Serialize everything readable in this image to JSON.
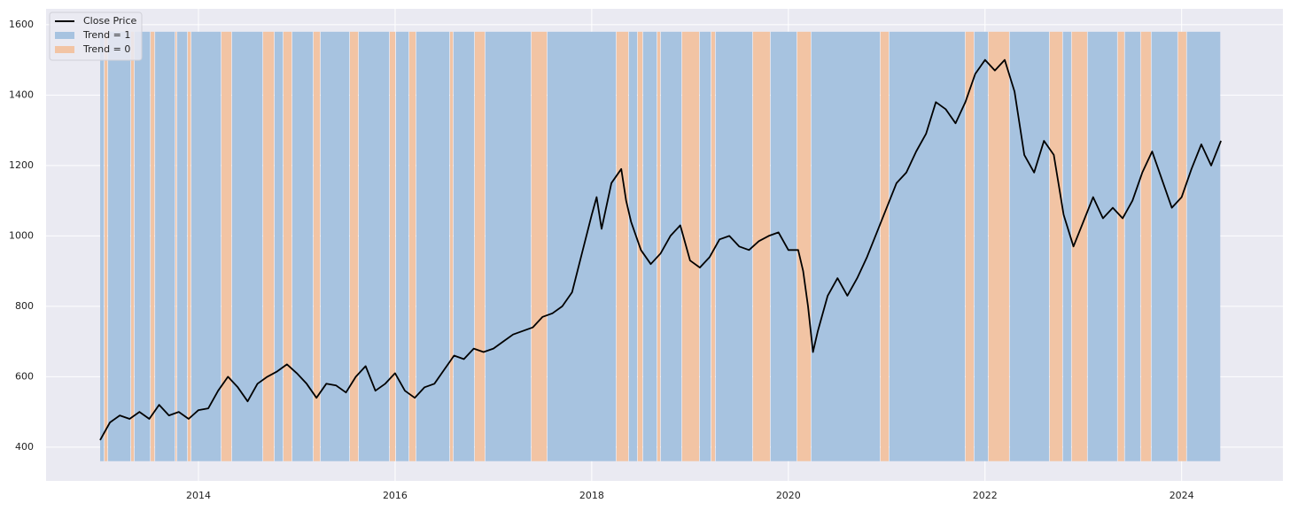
{
  "chart_data": {
    "type": "line",
    "series": [
      {
        "name": "Close Price",
        "color": "#000000",
        "x": [
          2013.0,
          2013.1,
          2013.2,
          2013.3,
          2013.4,
          2013.5,
          2013.6,
          2013.7,
          2013.8,
          2013.9,
          2014.0,
          2014.1,
          2014.2,
          2014.3,
          2014.4,
          2014.5,
          2014.6,
          2014.7,
          2014.8,
          2014.9,
          2015.0,
          2015.1,
          2015.2,
          2015.3,
          2015.4,
          2015.5,
          2015.6,
          2015.7,
          2015.8,
          2015.9,
          2016.0,
          2016.1,
          2016.2,
          2016.3,
          2016.4,
          2016.5,
          2016.6,
          2016.7,
          2016.8,
          2016.9,
          2017.0,
          2017.1,
          2017.2,
          2017.3,
          2017.4,
          2017.5,
          2017.6,
          2017.7,
          2017.8,
          2017.9,
          2018.0,
          2018.05,
          2018.1,
          2018.2,
          2018.3,
          2018.35,
          2018.4,
          2018.5,
          2018.6,
          2018.7,
          2018.8,
          2018.9,
          2019.0,
          2019.1,
          2019.2,
          2019.3,
          2019.4,
          2019.5,
          2019.6,
          2019.7,
          2019.8,
          2019.9,
          2020.0,
          2020.1,
          2020.15,
          2020.2,
          2020.25,
          2020.3,
          2020.4,
          2020.5,
          2020.6,
          2020.7,
          2020.8,
          2020.9,
          2021.0,
          2021.1,
          2021.2,
          2021.3,
          2021.4,
          2021.5,
          2021.6,
          2021.7,
          2021.8,
          2021.9,
          2022.0,
          2022.1,
          2022.2,
          2022.3,
          2022.4,
          2022.5,
          2022.6,
          2022.7,
          2022.8,
          2022.9,
          2023.0,
          2023.1,
          2023.2,
          2023.3,
          2023.4,
          2023.5,
          2023.6,
          2023.7,
          2023.8,
          2023.9,
          2024.0,
          2024.1,
          2024.2,
          2024.3,
          2024.4
        ],
        "values": [
          420,
          470,
          490,
          480,
          500,
          480,
          520,
          490,
          500,
          480,
          505,
          510,
          560,
          600,
          570,
          530,
          580,
          600,
          615,
          635,
          610,
          580,
          540,
          580,
          575,
          555,
          600,
          630,
          560,
          580,
          610,
          560,
          540,
          570,
          580,
          620,
          660,
          650,
          680,
          670,
          680,
          700,
          720,
          730,
          740,
          770,
          780,
          800,
          840,
          950,
          1060,
          1110,
          1020,
          1150,
          1190,
          1100,
          1040,
          960,
          920,
          950,
          1000,
          1030,
          930,
          910,
          940,
          990,
          1000,
          970,
          960,
          985,
          1000,
          1010,
          960,
          960,
          900,
          800,
          670,
          730,
          830,
          880,
          830,
          880,
          940,
          1010,
          1080,
          1150,
          1180,
          1240,
          1290,
          1380,
          1360,
          1320,
          1380,
          1460,
          1500,
          1470,
          1500,
          1410,
          1230,
          1180,
          1270,
          1230,
          1060,
          970,
          1040,
          1110,
          1050,
          1080,
          1050,
          1100,
          1180,
          1240,
          1160,
          1080,
          1110,
          1190,
          1260,
          1200,
          1270
        ]
      }
    ],
    "spans": [
      {
        "name": "Trend = 1",
        "color": "#a7c3e0",
        "intervals": [
          [
            2013.0,
            2013.045
          ],
          [
            2013.081,
            2013.315
          ],
          [
            2013.351,
            2013.514
          ],
          [
            2013.559,
            2013.766
          ],
          [
            2013.784,
            2013.892
          ],
          [
            2013.928,
            2014.234
          ],
          [
            2014.342,
            2014.658
          ],
          [
            2014.775,
            2014.865
          ],
          [
            2014.955,
            2015.171
          ],
          [
            2015.243,
            2015.541
          ],
          [
            2015.631,
            2015.946
          ],
          [
            2016.009,
            2016.144
          ],
          [
            2016.216,
            2016.559
          ],
          [
            2016.595,
            2016.811
          ],
          [
            2016.919,
            2017.387
          ],
          [
            2017.55,
            2018.252
          ],
          [
            2018.378,
            2018.468
          ],
          [
            2018.523,
            2018.667
          ],
          [
            2018.703,
            2018.919
          ],
          [
            2019.099,
            2019.216
          ],
          [
            2019.261,
            2019.64
          ],
          [
            2019.82,
            2020.09
          ],
          [
            2020.234,
            2020.937
          ],
          [
            2021.027,
            2021.802
          ],
          [
            2021.892,
            2022.036
          ],
          [
            2022.252,
            2022.658
          ],
          [
            2022.793,
            2022.883
          ],
          [
            2023.045,
            2023.351
          ],
          [
            2023.423,
            2023.586
          ],
          [
            2023.694,
            2023.964
          ],
          [
            2024.054,
            2024.4
          ]
        ]
      },
      {
        "name": "Trend = 0",
        "color": "#f2c4a4",
        "intervals": [
          [
            2013.045,
            2013.081
          ],
          [
            2013.315,
            2013.351
          ],
          [
            2013.514,
            2013.559
          ],
          [
            2013.766,
            2013.784
          ],
          [
            2013.892,
            2013.928
          ],
          [
            2014.234,
            2014.342
          ],
          [
            2014.658,
            2014.775
          ],
          [
            2014.865,
            2014.955
          ],
          [
            2015.171,
            2015.243
          ],
          [
            2015.541,
            2015.631
          ],
          [
            2015.946,
            2016.009
          ],
          [
            2016.144,
            2016.216
          ],
          [
            2016.559,
            2016.595
          ],
          [
            2016.811,
            2016.919
          ],
          [
            2017.387,
            2017.55
          ],
          [
            2018.252,
            2018.378
          ],
          [
            2018.468,
            2018.523
          ],
          [
            2018.667,
            2018.703
          ],
          [
            2018.919,
            2019.099
          ],
          [
            2019.216,
            2019.261
          ],
          [
            2019.64,
            2019.82
          ],
          [
            2020.09,
            2020.234
          ],
          [
            2020.937,
            2021.027
          ],
          [
            2021.802,
            2021.892
          ],
          [
            2022.036,
            2022.252
          ],
          [
            2022.658,
            2022.793
          ],
          [
            2022.883,
            2023.045
          ],
          [
            2023.351,
            2023.423
          ],
          [
            2023.586,
            2023.694
          ],
          [
            2023.964,
            2024.054
          ]
        ]
      }
    ],
    "span_ylim": [
      360,
      1580
    ],
    "xlim": [
      2012.45,
      2025.03
    ],
    "xticks": [
      2014,
      2016,
      2018,
      2020,
      2022,
      2024
    ],
    "ylim": [
      304,
      1645
    ],
    "yticks": [
      400,
      600,
      800,
      1000,
      1200,
      1400,
      1600
    ],
    "grid": true,
    "legend": "upper-left"
  }
}
